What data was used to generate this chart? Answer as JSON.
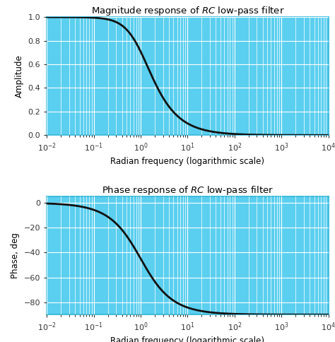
{
  "xlabel": "Radian frequency (logarithmic scale)",
  "ylabel1": "Amplitude",
  "ylabel2": "Phase, deg",
  "xlim": [
    0.01,
    10000
  ],
  "ylim1": [
    0,
    1.0
  ],
  "ylim2": [
    -90,
    5
  ],
  "yticks1": [
    0,
    0.2,
    0.4,
    0.6,
    0.8,
    1.0
  ],
  "yticks2": [
    -80,
    -60,
    -40,
    -20,
    0
  ],
  "plot_bg_color": "#5bcfef",
  "grid_color": "#ffffff",
  "line_color": "#111111",
  "fig_bg_color": "#ffffff",
  "spine_color": "#2bb5d8",
  "line_width": 2.0,
  "title_fontsize": 9.5,
  "label_fontsize": 8.5,
  "tick_fontsize": 8.0,
  "tick_color": "#333333",
  "RC": 1.0
}
